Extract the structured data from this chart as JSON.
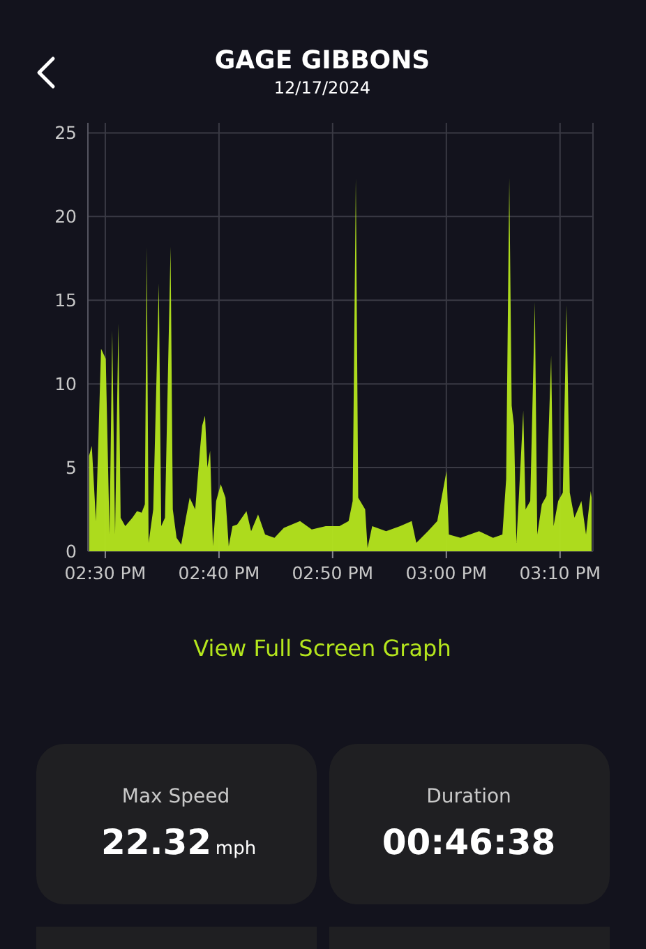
{
  "chart_data": {
    "type": "area",
    "title": "GAGE GIBBONS",
    "subtitle": "12/17/2024",
    "annotations": [
      "View Full Screen Graph",
      "Max Speed",
      "22.32",
      "mph",
      "Duration",
      "00:46:38"
    ],
    "xlim": [
      14.4745,
      15.215
    ],
    "ylim": [
      0,
      25.6
    ],
    "xticks": [
      {
        "value": 14.5,
        "label": "02:30 PM"
      },
      {
        "value": 14.6667,
        "label": "02:40 PM"
      },
      {
        "value": 14.8333,
        "label": "02:50 PM"
      },
      {
        "value": 15,
        "label": "03:00 PM"
      },
      {
        "value": 15.1667,
        "label": "03:10 PM"
      }
    ],
    "yticks": [
      0,
      5,
      10,
      15,
      20,
      25
    ],
    "grid": true,
    "series": [
      {
        "color": "#b5e61d",
        "x": [
          14.4762,
          14.4802,
          14.4863,
          14.4938,
          14.5007,
          14.5062,
          14.5102,
          14.5143,
          14.5192,
          14.5225,
          14.5293,
          14.5397,
          14.5465,
          14.5533,
          14.558,
          14.5608,
          14.5635,
          14.5703,
          14.5785,
          14.582,
          14.5875,
          14.5957,
          14.599,
          14.6045,
          14.6113,
          14.6182,
          14.6237,
          14.6318,
          14.6387,
          14.642,
          14.6462,
          14.6497,
          14.6537,
          14.6578,
          14.6625,
          14.6693,
          14.6762,
          14.681,
          14.6865,
          14.6933,
          14.707,
          14.7138,
          14.724,
          14.7343,
          14.748,
          14.7617,
          14.7855,
          14.8027,
          14.8232,
          14.8433,
          14.8567,
          14.8627,
          14.8673,
          14.8708,
          14.881,
          14.8845,
          14.8913,
          14.9117,
          14.9322,
          14.9492,
          14.956,
          14.973,
          14.9867,
          15.0003,
          15.0037,
          15.0208,
          15.048,
          15.0685,
          15.0822,
          15.0877,
          15.0923,
          15.0958,
          15.0992,
          15.1027,
          15.106,
          15.1128,
          15.1162,
          15.123,
          15.1298,
          15.1333,
          15.14,
          15.1468,
          15.1537,
          15.1572,
          15.164,
          15.1708,
          15.1762,
          15.181,
          15.1878,
          15.198,
          15.2048,
          15.2117,
          15.213
        ],
        "values": [
          5.7,
          6.3,
          1.8,
          12.1,
          11.5,
          1,
          13.2,
          1,
          13.6,
          2,
          1.5,
          2,
          2.4,
          2.3,
          2.8,
          18.2,
          0.5,
          2.5,
          16,
          1.5,
          2,
          18.2,
          2.5,
          0.8,
          0.4,
          2,
          3.2,
          2.5,
          6,
          7.5,
          8.1,
          5,
          6,
          0.3,
          3,
          4,
          3.2,
          0.3,
          1.5,
          1.6,
          2.4,
          1.2,
          2.2,
          1,
          0.8,
          1.4,
          1.8,
          1.3,
          1.5,
          1.5,
          1.8,
          3,
          22.3,
          3.2,
          2.5,
          0.2,
          1.5,
          1.2,
          1.5,
          1.8,
          0.5,
          1.2,
          1.8,
          4.8,
          1,
          0.8,
          1.2,
          0.8,
          1,
          4.3,
          22.3,
          8.7,
          7.5,
          0.5,
          3,
          8.4,
          2.5,
          3,
          14.9,
          1,
          2.8,
          3.3,
          11.7,
          1.5,
          3,
          3.5,
          14.7,
          3.5,
          2,
          3,
          1,
          3.6,
          3.2
        ]
      }
    ]
  }
}
